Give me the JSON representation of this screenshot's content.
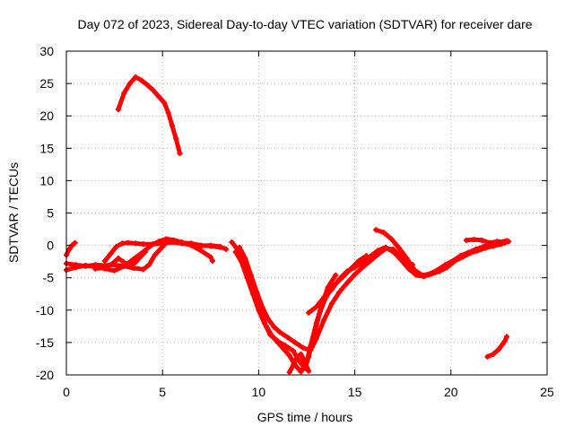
{
  "chart_data": {
    "type": "scatter",
    "title": "Day 072 of 2023, Sidereal Day-to-day VTEC variation (SDTVAR) for receiver dare",
    "xlabel": "GPS time / hours",
    "ylabel": "SDTVAR / TECUs",
    "xlim": [
      0,
      25
    ],
    "ylim": [
      -20,
      30
    ],
    "xticks": [
      0,
      5,
      10,
      15,
      20,
      25
    ],
    "yticks": [
      -20,
      -15,
      -10,
      -5,
      0,
      5,
      10,
      15,
      20,
      25,
      30
    ],
    "grid": true,
    "legend": "none",
    "series_color": "#ff0000",
    "series": [
      {
        "name": "arc-a",
        "points": [
          [
            0.0,
            -1.5
          ],
          [
            0.15,
            -0.6
          ],
          [
            0.3,
            0.0
          ],
          [
            0.45,
            0.4
          ]
        ]
      },
      {
        "name": "arc-b",
        "points": [
          [
            0.0,
            -2.8
          ],
          [
            0.5,
            -3.0
          ],
          [
            1.0,
            -3.2
          ],
          [
            1.5,
            -3.0
          ],
          [
            2.0,
            -3.1
          ],
          [
            2.5,
            -3.0
          ],
          [
            3.0,
            -3.2
          ],
          [
            3.5,
            -3.5
          ],
          [
            4.0,
            -3.7
          ],
          [
            4.3,
            -3.0
          ],
          [
            4.6,
            -1.5
          ],
          [
            5.0,
            -0.2
          ],
          [
            5.3,
            0.8
          ],
          [
            5.6,
            0.7
          ],
          [
            6.0,
            0.4
          ],
          [
            6.5,
            0.3
          ],
          [
            7.0,
            0.0
          ],
          [
            7.5,
            -0.1
          ],
          [
            8.0,
            -0.3
          ]
        ]
      },
      {
        "name": "arc-c",
        "points": [
          [
            0.0,
            -3.8
          ],
          [
            0.5,
            -3.4
          ],
          [
            1.0,
            -3.1
          ],
          [
            1.5,
            -3.3
          ],
          [
            2.0,
            -3.6
          ],
          [
            2.5,
            -3.9
          ],
          [
            3.0,
            -3.2
          ],
          [
            3.5,
            -2.1
          ],
          [
            4.0,
            -1.0
          ],
          [
            4.4,
            0.0
          ],
          [
            4.8,
            0.6
          ],
          [
            5.2,
            1.0
          ],
          [
            5.6,
            0.8
          ],
          [
            6.0,
            0.5
          ],
          [
            6.5,
            0.0
          ],
          [
            7.0,
            -0.8
          ],
          [
            7.5,
            -1.8
          ],
          [
            7.6,
            -2.4
          ]
        ]
      },
      {
        "name": "arc-d",
        "points": [
          [
            2.0,
            -2.4
          ],
          [
            2.3,
            -1.3
          ],
          [
            2.6,
            -0.2
          ],
          [
            2.9,
            0.3
          ],
          [
            3.2,
            0.4
          ],
          [
            3.6,
            0.3
          ],
          [
            4.0,
            0.2
          ],
          [
            4.5,
            0.2
          ],
          [
            5.0,
            0.3
          ],
          [
            5.5,
            0.5
          ],
          [
            6.0,
            0.3
          ],
          [
            6.5,
            0.1
          ],
          [
            7.0,
            -0.1
          ],
          [
            7.5,
            0.0
          ],
          [
            8.0,
            -0.2
          ],
          [
            8.3,
            -0.6
          ]
        ]
      },
      {
        "name": "arc-e",
        "points": [
          [
            1.5,
            -3.6
          ],
          [
            2.0,
            -3.4
          ],
          [
            2.4,
            -2.8
          ],
          [
            2.7,
            -2.0
          ],
          [
            3.0,
            -2.6
          ],
          [
            3.3,
            -3.2
          ],
          [
            3.6,
            -2.6
          ],
          [
            3.9,
            -1.6
          ],
          [
            4.1,
            -1.0
          ]
        ]
      },
      {
        "name": "arc-f",
        "points": [
          [
            2.7,
            21.0
          ],
          [
            3.0,
            23.5
          ],
          [
            3.3,
            25.0
          ],
          [
            3.6,
            26.0
          ],
          [
            3.9,
            25.5
          ],
          [
            4.2,
            24.8
          ],
          [
            4.5,
            24.0
          ],
          [
            4.8,
            23.0
          ],
          [
            5.1,
            22.0
          ],
          [
            5.3,
            20.5
          ],
          [
            5.5,
            18.5
          ],
          [
            5.7,
            16.5
          ],
          [
            5.9,
            14.2
          ]
        ]
      },
      {
        "name": "arc-g",
        "points": [
          [
            8.6,
            0.5
          ],
          [
            8.9,
            -0.6
          ],
          [
            9.2,
            -3.0
          ],
          [
            9.5,
            -5.5
          ],
          [
            9.8,
            -8.0
          ],
          [
            10.1,
            -10.5
          ],
          [
            10.4,
            -12.5
          ],
          [
            10.7,
            -14.0
          ],
          [
            11.0,
            -15.0
          ],
          [
            11.3,
            -16.0
          ],
          [
            11.6,
            -17.0
          ],
          [
            11.9,
            -18.5
          ],
          [
            12.2,
            -19.5
          ],
          [
            12.5,
            -18.0
          ],
          [
            12.7,
            -15.5
          ],
          [
            13.0,
            -12.0
          ],
          [
            13.3,
            -9.0
          ],
          [
            13.6,
            -6.5
          ],
          [
            14.0,
            -4.6
          ]
        ]
      },
      {
        "name": "arc-h",
        "points": [
          [
            8.8,
            -1.0
          ],
          [
            9.1,
            -2.5
          ],
          [
            9.4,
            -5.0
          ],
          [
            9.7,
            -7.5
          ],
          [
            10.0,
            -10.0
          ],
          [
            10.3,
            -12.0
          ],
          [
            10.6,
            -13.8
          ],
          [
            11.0,
            -14.8
          ],
          [
            11.4,
            -15.5
          ],
          [
            11.8,
            -16.3
          ],
          [
            12.1,
            -17.8
          ],
          [
            12.4,
            -19.0
          ],
          [
            12.6,
            -17.2
          ],
          [
            12.9,
            -13.5
          ],
          [
            13.2,
            -10.2
          ],
          [
            13.5,
            -8.0
          ],
          [
            13.9,
            -6.2
          ],
          [
            14.4,
            -4.8
          ],
          [
            14.8,
            -3.6
          ],
          [
            15.2,
            -2.4
          ],
          [
            15.6,
            -1.6
          ]
        ]
      },
      {
        "name": "arc-i",
        "points": [
          [
            9.0,
            -0.3
          ],
          [
            9.3,
            -2.0
          ],
          [
            9.6,
            -4.6
          ],
          [
            9.9,
            -7.2
          ],
          [
            10.2,
            -9.6
          ],
          [
            10.5,
            -11.4
          ],
          [
            10.8,
            -12.6
          ],
          [
            11.1,
            -13.4
          ],
          [
            11.5,
            -14.2
          ],
          [
            11.9,
            -15.0
          ],
          [
            12.3,
            -15.8
          ],
          [
            12.7,
            -16.2
          ],
          [
            13.0,
            -14.4
          ],
          [
            13.4,
            -11.5
          ],
          [
            13.8,
            -9.0
          ],
          [
            14.2,
            -7.2
          ],
          [
            14.6,
            -5.8
          ],
          [
            15.0,
            -4.5
          ],
          [
            15.4,
            -3.4
          ],
          [
            15.8,
            -2.4
          ],
          [
            16.2,
            -1.4
          ],
          [
            16.6,
            -0.5
          ],
          [
            17.0,
            -0.6
          ],
          [
            17.5,
            -2.0
          ],
          [
            18.0,
            -3.0
          ]
        ]
      },
      {
        "name": "arc-j",
        "points": [
          [
            11.6,
            -19.6
          ],
          [
            11.8,
            -18.5
          ],
          [
            12.0,
            -17.2
          ],
          [
            12.2,
            -16.8
          ],
          [
            12.4,
            -18.0
          ],
          [
            12.6,
            -19.4
          ]
        ]
      },
      {
        "name": "arc-k",
        "points": [
          [
            12.6,
            -10.4
          ],
          [
            13.0,
            -9.5
          ],
          [
            13.4,
            -8.0
          ],
          [
            13.8,
            -6.8
          ],
          [
            14.2,
            -5.2
          ],
          [
            14.6,
            -4.0
          ],
          [
            15.0,
            -3.4
          ],
          [
            15.4,
            -2.6
          ],
          [
            15.8,
            -1.7
          ],
          [
            16.2,
            -0.8
          ],
          [
            16.6,
            -0.3
          ],
          [
            17.0,
            -1.0
          ],
          [
            17.4,
            -2.2
          ],
          [
            17.8,
            -3.6
          ],
          [
            18.2,
            -4.6
          ],
          [
            18.6,
            -4.8
          ],
          [
            19.0,
            -4.4
          ],
          [
            19.4,
            -4.0
          ],
          [
            19.8,
            -3.4
          ],
          [
            20.2,
            -2.4
          ],
          [
            20.6,
            -1.8
          ],
          [
            21.0,
            -1.2
          ],
          [
            21.4,
            -0.8
          ],
          [
            21.8,
            -0.4
          ],
          [
            22.2,
            -0.1
          ],
          [
            22.6,
            0.2
          ],
          [
            23.0,
            0.6
          ]
        ]
      },
      {
        "name": "arc-l",
        "points": [
          [
            16.1,
            2.4
          ],
          [
            16.5,
            2.0
          ],
          [
            16.9,
            1.0
          ],
          [
            17.3,
            -0.4
          ],
          [
            17.7,
            -2.0
          ],
          [
            18.1,
            -3.8
          ],
          [
            18.5,
            -4.6
          ],
          [
            18.9,
            -4.4
          ],
          [
            19.3,
            -3.8
          ],
          [
            19.7,
            -3.0
          ],
          [
            20.1,
            -2.4
          ],
          [
            20.5,
            -1.6
          ],
          [
            20.9,
            -1.1
          ],
          [
            21.3,
            -0.6
          ],
          [
            21.7,
            -0.2
          ],
          [
            22.1,
            0.2
          ],
          [
            22.5,
            0.5
          ],
          [
            22.9,
            0.7
          ]
        ]
      },
      {
        "name": "arc-m",
        "points": [
          [
            20.8,
            0.8
          ],
          [
            21.2,
            0.9
          ],
          [
            21.6,
            0.8
          ],
          [
            22.0,
            0.4
          ],
          [
            22.4,
            0.6
          ],
          [
            22.8,
            0.4
          ]
        ]
      },
      {
        "name": "arc-n",
        "points": [
          [
            21.9,
            -17.2
          ],
          [
            22.2,
            -16.8
          ],
          [
            22.5,
            -16.0
          ],
          [
            22.8,
            -14.8
          ],
          [
            22.9,
            -14.1
          ]
        ]
      }
    ]
  }
}
